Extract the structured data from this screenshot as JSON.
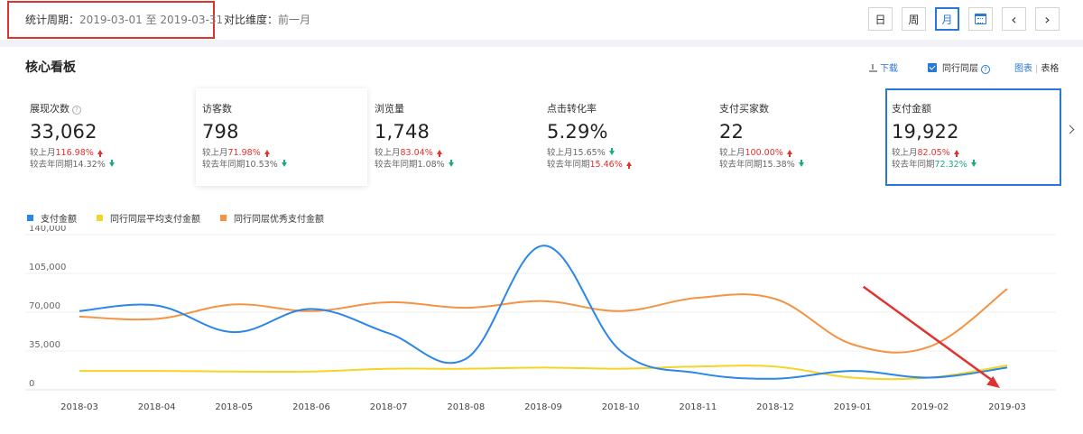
{
  "header": {
    "period_label": "统计周期：",
    "period_value": "2019-03-01 至 2019-03-31",
    "compare_label": "对比维度：",
    "compare_value": "前一月",
    "buttons": {
      "day": "日",
      "week": "周",
      "month": "月",
      "prev": "‹",
      "next": "›"
    },
    "active": "month"
  },
  "panel": {
    "title": "核心看板",
    "download": "下载",
    "peer_checkbox": "同行同层",
    "peer_checked": true,
    "view_chart": "图表",
    "view_sep": "|",
    "view_table": "表格"
  },
  "cards": [
    {
      "label": "展现次数",
      "value": "33,062",
      "mom_prefix": "较上月",
      "mom": "116.98%",
      "mom_dir": "up",
      "yoy_prefix": "较去年同期",
      "yoy": "14.32%",
      "yoy_dir": "down"
    },
    {
      "label": "访客数",
      "value": "798",
      "mom_prefix": "较上月",
      "mom": "71.98%",
      "mom_dir": "up",
      "yoy_prefix": "较去年同期",
      "yoy": "10.53%",
      "yoy_dir": "down"
    },
    {
      "label": "浏览量",
      "value": "1,748",
      "mom_prefix": "较上月",
      "mom": "83.04%",
      "mom_dir": "up",
      "yoy_prefix": "较去年同期",
      "yoy": "1.08%",
      "yoy_dir": "down"
    },
    {
      "label": "点击转化率",
      "value": "5.29%",
      "mom_prefix": "较上月",
      "mom": "15.65%",
      "mom_dir": "down",
      "yoy_prefix": "较去年同期",
      "yoy": "15.46%",
      "yoy_dir": "up"
    },
    {
      "label": "支付买家数",
      "value": "22",
      "mom_prefix": "较上月",
      "mom": "100.00%",
      "mom_dir": "up",
      "yoy_prefix": "较去年同期",
      "yoy": "15.38%",
      "yoy_dir": "down"
    },
    {
      "label": "支付金额",
      "value": "19,922",
      "mom_prefix": "较上月",
      "mom": "82.05%",
      "mom_dir": "up",
      "yoy_prefix": "较去年同期",
      "yoy": "72.32%",
      "yoy_dir": "down"
    }
  ],
  "colors": {
    "accent": "#2a78d6",
    "up": "#e0322f",
    "down": "#1bab84",
    "highlight_box": "#e0322f"
  },
  "chart_data": {
    "type": "line",
    "categories": [
      "2018-03",
      "2018-04",
      "2018-05",
      "2018-06",
      "2018-07",
      "2018-08",
      "2018-09",
      "2018-10",
      "2018-11",
      "2018-12",
      "2019-01",
      "2019-02",
      "2019-03"
    ],
    "ylim": [
      0,
      140000
    ],
    "yticks": [
      0,
      35000,
      70000,
      105000,
      140000
    ],
    "ytick_labels": [
      "0",
      "35,000",
      "70,000",
      "105,000",
      "140,000"
    ],
    "grid": true,
    "legend_position": "top-left",
    "series": [
      {
        "name": "支付金额",
        "color": "#2a86e8",
        "values": [
          71000,
          76000,
          52000,
          73000,
          51000,
          28000,
          130000,
          35000,
          15000,
          10000,
          17000,
          11000,
          20000
        ]
      },
      {
        "name": "同行同层平均支付金额",
        "color": "#f5d327",
        "values": [
          17000,
          17000,
          16500,
          16500,
          19000,
          19000,
          20000,
          19000,
          21000,
          21000,
          11000,
          11000,
          22000
        ]
      },
      {
        "name": "同行同层优秀支付金额",
        "color": "#f59343",
        "values": [
          66000,
          64000,
          77000,
          71000,
          79000,
          74000,
          80000,
          71000,
          83000,
          82000,
          41000,
          39000,
          91000
        ]
      }
    ],
    "annotation": {
      "type": "arrow",
      "color": "#e0322f",
      "from": [
        "2019-01",
        93000
      ],
      "to": [
        "2019-03",
        0
      ]
    }
  }
}
